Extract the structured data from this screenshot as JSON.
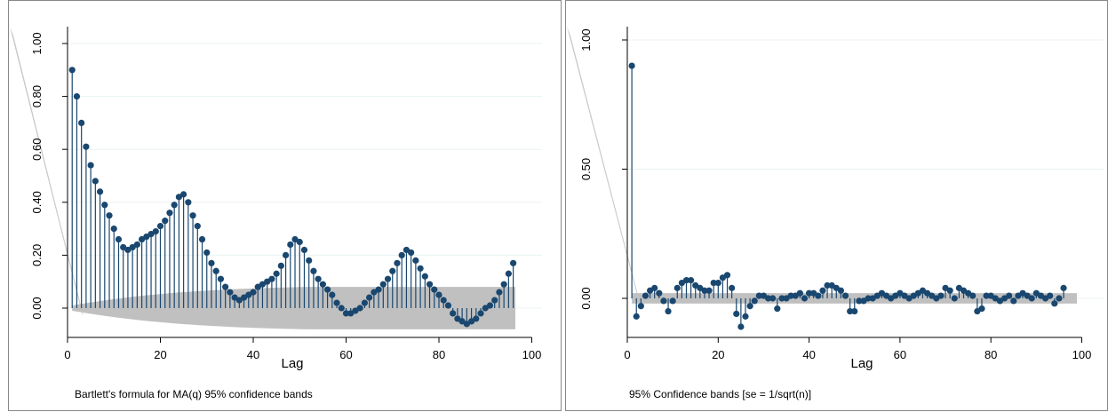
{
  "colors": {
    "marker": "#1a476f",
    "band": "#c0c0c0",
    "grid": "#eaf2f3",
    "frame": "#888888",
    "axis": "#000000"
  },
  "chart_data": [
    {
      "type": "scatter",
      "style": "spike",
      "title": "",
      "xlabel": "Lag",
      "ylabel": "",
      "note": "Bartlett's formula for MA(q) 95% confidence bands",
      "xlim": [
        0,
        100
      ],
      "ylim": [
        -0.08,
        1.02
      ],
      "xticks": [
        "0",
        "20",
        "40",
        "60",
        "80",
        "100"
      ],
      "yticks": [
        "0.00",
        "0.20",
        "0.40",
        "0.60",
        "0.80",
        "1.00"
      ],
      "grid": true,
      "lags": [
        1,
        2,
        3,
        4,
        5,
        6,
        7,
        8,
        9,
        10,
        11,
        12,
        13,
        14,
        15,
        16,
        17,
        18,
        19,
        20,
        21,
        22,
        23,
        24,
        25,
        26,
        27,
        28,
        29,
        30,
        31,
        32,
        33,
        34,
        35,
        36,
        37,
        38,
        39,
        40,
        41,
        42,
        43,
        44,
        45,
        46,
        47,
        48,
        49,
        50,
        51,
        52,
        53,
        54,
        55,
        56,
        57,
        58,
        59,
        60,
        61,
        62,
        63,
        64,
        65,
        66,
        67,
        68,
        69,
        70,
        71,
        72,
        73,
        74,
        75,
        76,
        77,
        78,
        79,
        80,
        81,
        82,
        83,
        84,
        85,
        86,
        87,
        88,
        89,
        90,
        91,
        92,
        93,
        94,
        95,
        96
      ],
      "values": [
        0.9,
        0.8,
        0.7,
        0.61,
        0.54,
        0.48,
        0.44,
        0.39,
        0.35,
        0.3,
        0.26,
        0.23,
        0.22,
        0.23,
        0.24,
        0.26,
        0.27,
        0.28,
        0.29,
        0.31,
        0.33,
        0.36,
        0.39,
        0.42,
        0.43,
        0.4,
        0.35,
        0.31,
        0.26,
        0.21,
        0.17,
        0.14,
        0.11,
        0.08,
        0.06,
        0.04,
        0.03,
        0.04,
        0.05,
        0.06,
        0.08,
        0.09,
        0.1,
        0.11,
        0.13,
        0.16,
        0.2,
        0.24,
        0.26,
        0.25,
        0.22,
        0.18,
        0.14,
        0.11,
        0.09,
        0.07,
        0.05,
        0.02,
        0.0,
        -0.02,
        -0.02,
        -0.01,
        0.0,
        0.02,
        0.04,
        0.06,
        0.07,
        0.09,
        0.11,
        0.14,
        0.17,
        0.2,
        0.22,
        0.21,
        0.18,
        0.15,
        0.12,
        0.09,
        0.07,
        0.05,
        0.03,
        0.01,
        -0.02,
        -0.04,
        -0.05,
        -0.06,
        -0.05,
        -0.04,
        -0.02,
        0.0,
        0.01,
        0.03,
        0.06,
        0.09,
        0.13,
        0.17
      ],
      "band": {
        "type": "bartlett",
        "upper_start": 0.01,
        "upper_end": 0.08,
        "lower_start": -0.01,
        "lower_end": -0.08
      }
    },
    {
      "type": "scatter",
      "style": "spike",
      "title": "",
      "xlabel": "Lag",
      "ylabel": "",
      "note": "95% Confidence bands [se = 1/sqrt(n)]",
      "xlim": [
        0,
        100
      ],
      "ylim": [
        -0.15,
        1.02
      ],
      "xticks": [
        "0",
        "20",
        "40",
        "60",
        "80",
        "100"
      ],
      "yticks": [
        "0.00",
        "0.50",
        "1.00"
      ],
      "grid": true,
      "lags": [
        1,
        2,
        3,
        4,
        5,
        6,
        7,
        8,
        9,
        10,
        11,
        12,
        13,
        14,
        15,
        16,
        17,
        18,
        19,
        20,
        21,
        22,
        23,
        24,
        25,
        26,
        27,
        28,
        29,
        30,
        31,
        32,
        33,
        34,
        35,
        36,
        37,
        38,
        39,
        40,
        41,
        42,
        43,
        44,
        45,
        46,
        47,
        48,
        49,
        50,
        51,
        52,
        53,
        54,
        55,
        56,
        57,
        58,
        59,
        60,
        61,
        62,
        63,
        64,
        65,
        66,
        67,
        68,
        69,
        70,
        71,
        72,
        73,
        74,
        75,
        76,
        77,
        78,
        79,
        80,
        81,
        82,
        83,
        84,
        85,
        86,
        87,
        88,
        89,
        90,
        91,
        92,
        93,
        94,
        95,
        96
      ],
      "values": [
        0.9,
        -0.07,
        -0.03,
        0.01,
        0.03,
        0.04,
        0.02,
        -0.01,
        -0.05,
        -0.01,
        0.04,
        0.06,
        0.07,
        0.07,
        0.05,
        0.04,
        0.03,
        0.03,
        0.06,
        0.06,
        0.08,
        0.09,
        0.04,
        -0.06,
        -0.11,
        -0.07,
        -0.03,
        -0.01,
        0.01,
        0.01,
        0.0,
        0.0,
        -0.04,
        0.0,
        0.0,
        0.01,
        0.01,
        0.02,
        0.0,
        0.02,
        0.02,
        0.01,
        0.03,
        0.05,
        0.05,
        0.04,
        0.03,
        0.01,
        -0.05,
        -0.05,
        -0.01,
        -0.01,
        0.0,
        0.0,
        0.01,
        0.02,
        0.01,
        0.0,
        0.01,
        0.02,
        0.01,
        0.0,
        0.01,
        0.02,
        0.03,
        0.02,
        0.01,
        0.0,
        0.01,
        0.04,
        0.03,
        0.0,
        0.04,
        0.03,
        0.02,
        0.01,
        -0.05,
        -0.04,
        0.01,
        0.01,
        0.0,
        -0.01,
        0.0,
        0.01,
        -0.01,
        0.01,
        0.02,
        0.01,
        0.0,
        0.02,
        0.01,
        0.0,
        0.01,
        -0.02,
        0.0,
        0.04
      ]
    }
  ]
}
